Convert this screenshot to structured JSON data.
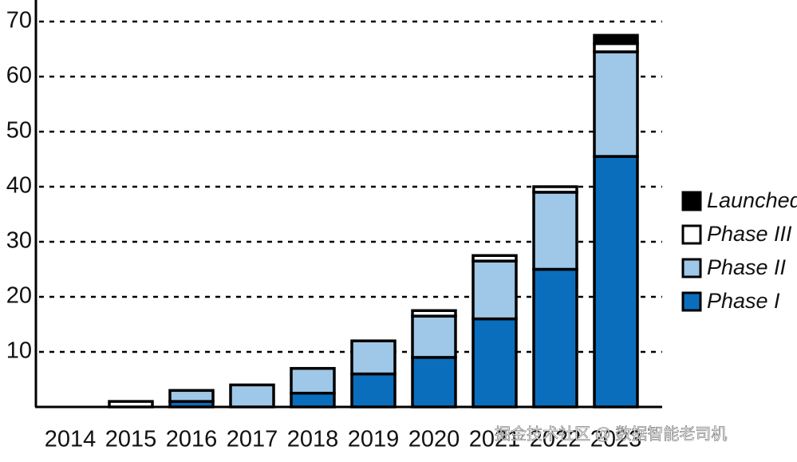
{
  "chart_data": {
    "type": "stacked_bar",
    "categories": [
      "2014",
      "2015",
      "2016",
      "2017",
      "2018",
      "2019",
      "2020",
      "2021",
      "2022",
      "2023"
    ],
    "series": [
      {
        "name": "Phase I",
        "color": "#0a6ebd",
        "values": [
          0,
          0,
          1,
          0,
          2.5,
          6,
          9,
          16,
          25,
          45.5
        ]
      },
      {
        "name": "Phase II",
        "color": "#9fc7e7",
        "values": [
          0,
          0,
          2,
          4,
          4.5,
          6,
          7.5,
          10.5,
          14,
          19
        ]
      },
      {
        "name": "Phase III",
        "color": "#ffffff",
        "values": [
          0,
          1,
          0,
          0,
          0,
          0,
          1,
          1,
          1,
          1.5
        ]
      },
      {
        "name": "Launched",
        "color": "#000000",
        "values": [
          0,
          0,
          0,
          0,
          0,
          0,
          0,
          0,
          0,
          1.5
        ]
      }
    ],
    "ylim": [
      0,
      70
    ],
    "yticks": [
      10,
      20,
      30,
      40,
      50,
      60,
      70
    ],
    "grid": true,
    "legend": "right",
    "watermark": "掘金技术社区 @ 数据智能老司机"
  }
}
